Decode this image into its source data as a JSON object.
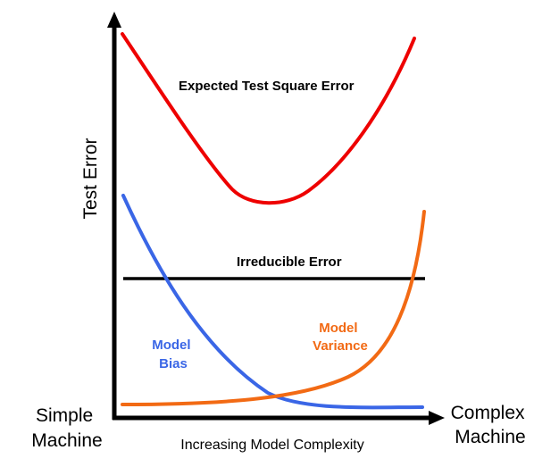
{
  "diagram": {
    "y_axis_label": "Test Error",
    "x_axis_label": "Increasing Model Complexity",
    "left_end_label": [
      "Simple",
      "Machine"
    ],
    "right_end_label": [
      "Complex",
      "Machine"
    ],
    "curve_labels": {
      "total": "Expected Test Square Error",
      "irreducible": "Irreducible Error",
      "bias": [
        "Model",
        "Bias"
      ],
      "variance": [
        "Model",
        "Variance"
      ]
    },
    "colors": {
      "total": "#ee0000",
      "irreducible": "#000000",
      "bias": "#3a66e6",
      "variance": "#f26a14",
      "axis": "#000000"
    }
  }
}
